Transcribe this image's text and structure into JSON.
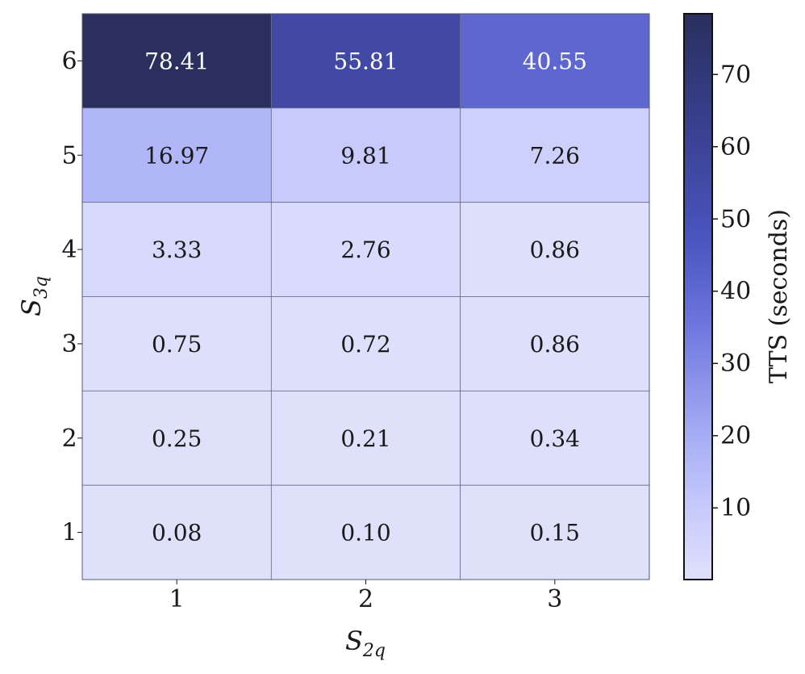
{
  "chart_data": {
    "type": "heatmap",
    "xlabel": "S",
    "xlabel_sub": "2q",
    "ylabel": "S",
    "ylabel_sub": "3q",
    "x_categories": [
      "1",
      "2",
      "3"
    ],
    "y_categories": [
      "6",
      "5",
      "4",
      "3",
      "2",
      "1"
    ],
    "values": [
      [
        78.41,
        55.81,
        40.55
      ],
      [
        16.97,
        9.81,
        7.26
      ],
      [
        3.33,
        2.76,
        0.86
      ],
      [
        0.75,
        0.72,
        0.86
      ],
      [
        0.25,
        0.21,
        0.34
      ],
      [
        0.08,
        0.1,
        0.15
      ]
    ],
    "value_labels": [
      [
        "78.41",
        "55.81",
        "40.55"
      ],
      [
        "16.97",
        "9.81",
        "7.26"
      ],
      [
        "3.33",
        "2.76",
        "0.86"
      ],
      [
        "0.75",
        "0.72",
        "0.86"
      ],
      [
        "0.25",
        "0.21",
        "0.34"
      ],
      [
        "0.08",
        "0.10",
        "0.15"
      ]
    ],
    "colorbar": {
      "label": "TTS (seconds)",
      "ticks": [
        10,
        20,
        30,
        40,
        50,
        60,
        70
      ],
      "range": [
        0.08,
        78.41
      ],
      "color_low": "#dfe1fb",
      "color_mid": "#b8bcfb",
      "color_high": "#2a2f5e"
    },
    "grid": false
  }
}
